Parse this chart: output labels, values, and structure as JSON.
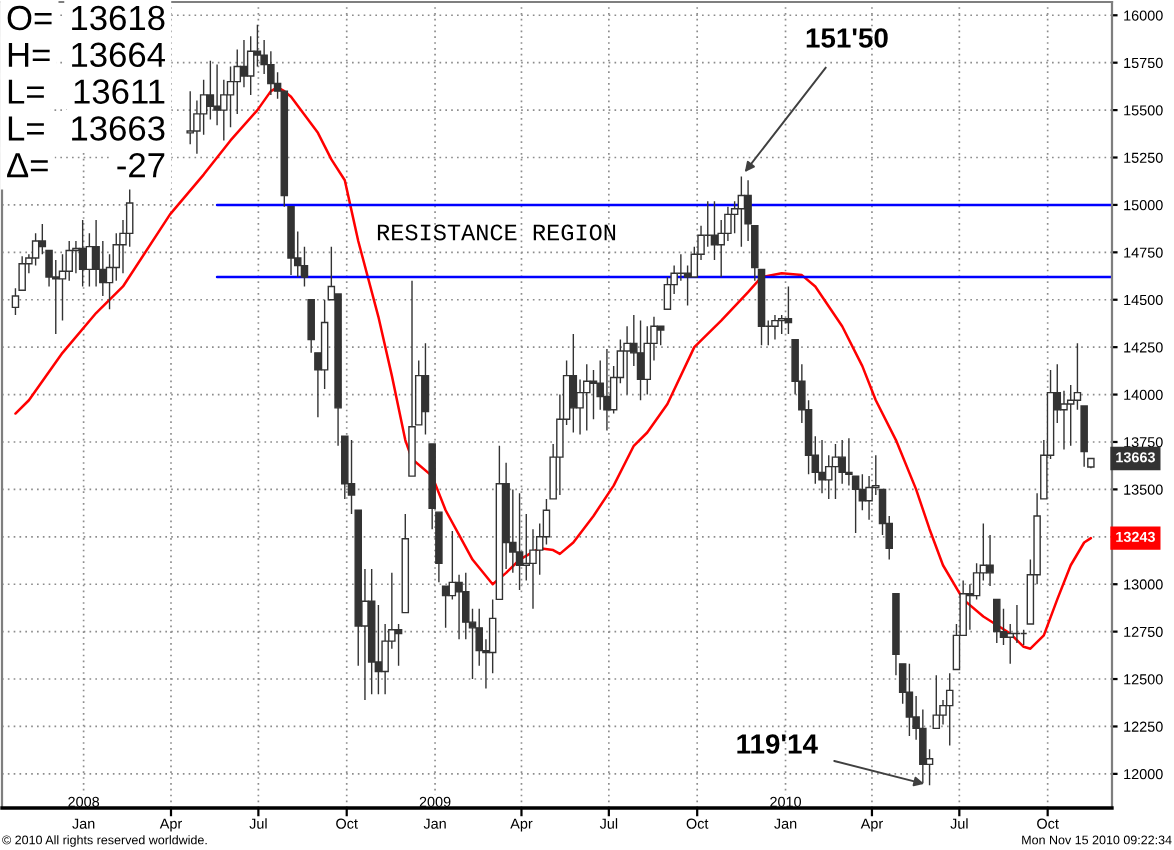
{
  "chart_data": {
    "type": "candlestick",
    "series": [
      {
        "color": "#333333",
        "x": [
          "2007-10-22",
          "2007-10-29",
          "2007-11-05",
          "2007-11-12",
          "2007-11-19",
          "2007-11-26",
          "2007-12-03",
          "2007-12-10",
          "2007-12-17",
          "2007-12-24",
          "2007-12-31",
          "2008-01-07",
          "2008-01-14",
          "2008-01-21",
          "2008-01-28",
          "2008-02-04",
          "2008-02-11",
          "2008-02-18",
          "2008-04-21",
          "2008-04-28",
          "2008-05-05",
          "2008-05-12",
          "2008-05-19",
          "2008-05-26",
          "2008-06-02",
          "2008-06-09",
          "2008-06-16",
          "2008-06-23",
          "2008-06-30",
          "2008-07-07",
          "2008-07-14",
          "2008-07-21",
          "2008-07-28",
          "2008-08-04",
          "2008-08-11",
          "2008-08-18",
          "2008-08-25",
          "2008-09-01",
          "2008-09-08",
          "2008-09-15",
          "2008-09-22",
          "2008-09-29",
          "2008-10-06",
          "2008-10-13",
          "2008-10-20",
          "2008-10-27",
          "2008-11-03",
          "2008-11-10",
          "2008-11-17",
          "2008-11-24",
          "2008-12-01",
          "2008-12-08",
          "2008-12-15",
          "2008-12-22",
          "2008-12-29",
          "2009-01-05",
          "2009-01-12",
          "2009-01-19",
          "2009-01-26",
          "2009-02-02",
          "2009-02-09",
          "2009-02-16",
          "2009-02-23",
          "2009-03-02",
          "2009-03-09",
          "2009-03-16",
          "2009-03-23",
          "2009-03-30",
          "2009-04-06",
          "2009-04-13",
          "2009-04-20",
          "2009-04-27",
          "2009-05-04",
          "2009-05-11",
          "2009-05-18",
          "2009-05-25",
          "2009-06-01",
          "2009-06-08",
          "2009-06-15",
          "2009-06-22",
          "2009-06-29",
          "2009-07-06",
          "2009-07-13",
          "2009-07-20",
          "2009-07-27",
          "2009-08-03",
          "2009-08-10",
          "2009-08-17",
          "2009-08-24",
          "2009-08-31",
          "2009-09-07",
          "2009-09-14",
          "2009-09-21",
          "2009-09-28",
          "2009-10-05",
          "2009-10-12",
          "2009-10-19",
          "2009-10-26",
          "2009-11-02",
          "2009-11-09",
          "2009-11-16",
          "2009-11-23",
          "2009-11-30",
          "2009-12-07",
          "2009-12-14",
          "2009-12-21",
          "2009-12-28",
          "2010-01-04",
          "2010-01-11",
          "2010-01-18",
          "2010-01-25",
          "2010-02-01",
          "2010-02-08",
          "2010-02-15",
          "2010-02-22",
          "2010-03-01",
          "2010-03-08",
          "2010-03-15",
          "2010-03-22",
          "2010-03-29",
          "2010-04-05",
          "2010-04-12",
          "2010-04-19",
          "2010-04-26",
          "2010-05-03",
          "2010-05-10",
          "2010-05-17",
          "2010-05-24",
          "2010-05-31",
          "2010-06-07",
          "2010-06-14",
          "2010-06-21",
          "2010-06-28",
          "2010-07-05",
          "2010-07-12",
          "2010-07-19",
          "2010-07-26",
          "2010-08-02",
          "2010-08-09",
          "2010-08-16",
          "2010-08-23",
          "2010-08-30",
          "2010-09-06",
          "2010-09-13",
          "2010-09-20",
          "2010-09-27",
          "2010-10-04",
          "2010-10-11",
          "2010-10-18",
          "2010-10-25",
          "2010-11-01",
          "2010-11-08",
          "2010-11-15"
        ],
        "ohlc": [
          [
            14460,
            14560,
            14420,
            14520
          ],
          [
            14550,
            14730,
            14550,
            14690
          ],
          [
            14690,
            14740,
            14640,
            14720
          ],
          [
            14720,
            14850,
            14680,
            14810
          ],
          [
            14810,
            14900,
            14740,
            14780
          ],
          [
            14760,
            14760,
            14570,
            14620
          ],
          [
            14620,
            14710,
            14320,
            14610
          ],
          [
            14610,
            14740,
            14390,
            14650
          ],
          [
            14650,
            14810,
            14600,
            14760
          ],
          [
            14760,
            14810,
            14640,
            14770
          ],
          [
            14770,
            14920,
            14570,
            14660
          ],
          [
            14660,
            14850,
            14570,
            14780
          ],
          [
            14780,
            14920,
            14570,
            14660
          ],
          [
            14660,
            14810,
            14520,
            14590
          ],
          [
            14590,
            14740,
            14450,
            14670
          ],
          [
            14670,
            14850,
            14600,
            14790
          ],
          [
            14790,
            14920,
            14640,
            14850
          ],
          [
            14850,
            15090,
            14780,
            15010
          ],
          [
            15380,
            15600,
            15320,
            15390
          ],
          [
            15390,
            15550,
            15270,
            15480
          ],
          [
            15480,
            15660,
            15370,
            15580
          ],
          [
            15580,
            15760,
            15450,
            15520
          ],
          [
            15520,
            15740,
            15420,
            15500
          ],
          [
            15500,
            15660,
            15340,
            15580
          ],
          [
            15580,
            15730,
            15410,
            15650
          ],
          [
            15650,
            15820,
            15480,
            15730
          ],
          [
            15730,
            15870,
            15620,
            15680
          ],
          [
            15680,
            15890,
            15580,
            15810
          ],
          [
            15810,
            15950,
            15730,
            15790
          ],
          [
            15790,
            15870,
            15690,
            15740
          ],
          [
            15740,
            15810,
            15580,
            15640
          ],
          [
            15640,
            15700,
            15560,
            15600
          ],
          [
            15600,
            15600,
            14990,
            15050
          ],
          [
            14990,
            14990,
            14630,
            14720
          ],
          [
            14720,
            14860,
            14620,
            14680
          ],
          [
            14680,
            14780,
            14570,
            14620
          ],
          [
            14500,
            14500,
            14220,
            14290
          ],
          [
            14220,
            14220,
            13880,
            14130
          ],
          [
            14130,
            14500,
            14030,
            14380
          ],
          [
            14500,
            14780,
            14500,
            14570
          ],
          [
            14530,
            14530,
            13730,
            13930
          ],
          [
            13780,
            13780,
            13450,
            13530
          ],
          [
            13530,
            13760,
            13370,
            13470
          ],
          [
            13390,
            13390,
            12570,
            12780
          ],
          [
            12780,
            13080,
            12390,
            12910
          ],
          [
            12910,
            13080,
            12420,
            12590
          ],
          [
            12590,
            12890,
            12420,
            12540
          ],
          [
            12540,
            12790,
            12420,
            12700
          ],
          [
            12700,
            13060,
            12660,
            12760
          ],
          [
            12760,
            12790,
            12570,
            12740
          ],
          [
            12850,
            13370,
            12850,
            13240
          ],
          [
            13570,
            14600,
            13570,
            13830
          ],
          [
            13840,
            14180,
            13840,
            14100
          ],
          [
            14100,
            14270,
            13790,
            13910
          ],
          [
            13740,
            13740,
            13290,
            13400
          ],
          [
            13380,
            13380,
            13010,
            13110
          ],
          [
            12990,
            12990,
            12770,
            12940
          ],
          [
            12940,
            13280,
            12920,
            13010
          ],
          [
            13010,
            13050,
            12710,
            12960
          ],
          [
            12960,
            13060,
            12710,
            12800
          ],
          [
            12800,
            12870,
            12500,
            12770
          ],
          [
            12770,
            12870,
            12570,
            12650
          ],
          [
            12650,
            12710,
            12450,
            12640
          ],
          [
            12640,
            12920,
            12530,
            12820
          ],
          [
            12920,
            13730,
            12920,
            13530
          ],
          [
            13530,
            13640,
            13080,
            13220
          ],
          [
            13220,
            13500,
            13060,
            13170
          ],
          [
            13170,
            13480,
            12970,
            13100
          ],
          [
            13100,
            13370,
            13020,
            13110
          ],
          [
            13110,
            13290,
            12870,
            13180
          ],
          [
            13180,
            13320,
            13050,
            13250
          ],
          [
            13250,
            13450,
            13210,
            13390
          ],
          [
            13450,
            13740,
            13450,
            13670
          ],
          [
            13670,
            14000,
            13470,
            13870
          ],
          [
            13870,
            14180,
            13840,
            14100
          ],
          [
            14100,
            14320,
            13800,
            13930
          ],
          [
            13930,
            14080,
            13790,
            14010
          ],
          [
            14010,
            14160,
            13810,
            14070
          ],
          [
            14070,
            14130,
            13870,
            14060
          ],
          [
            14060,
            14180,
            13920,
            13990
          ],
          [
            13990,
            14240,
            13810,
            13920
          ],
          [
            13920,
            14150,
            13900,
            14090
          ],
          [
            14090,
            14290,
            14060,
            14230
          ],
          [
            14230,
            14360,
            14000,
            14270
          ],
          [
            14270,
            14420,
            14150,
            14220
          ],
          [
            14220,
            14390,
            13970,
            14080
          ],
          [
            14080,
            14360,
            14000,
            14270
          ],
          [
            14270,
            14410,
            14180,
            14360
          ],
          [
            14360,
            14360,
            14260,
            14340
          ],
          [
            14450,
            14620,
            14450,
            14580
          ],
          [
            14580,
            14680,
            14530,
            14640
          ],
          [
            14640,
            14740,
            14600,
            14640
          ],
          [
            14640,
            14680,
            14470,
            14620
          ],
          [
            14620,
            14780,
            14620,
            14740
          ],
          [
            14740,
            14890,
            14710,
            14840
          ],
          [
            14840,
            15020,
            14780,
            14840
          ],
          [
            14840,
            15020,
            14710,
            14790
          ],
          [
            14790,
            14920,
            14620,
            14850
          ],
          [
            14850,
            14990,
            14810,
            14950
          ],
          [
            14950,
            15020,
            14850,
            14980
          ],
          [
            14980,
            15150,
            14780,
            15050
          ],
          [
            15050,
            15130,
            14810,
            14900
          ],
          [
            14890,
            14890,
            14600,
            14670
          ],
          [
            14660,
            14660,
            14260,
            14360
          ],
          [
            14360,
            14390,
            14260,
            14360
          ],
          [
            14360,
            14420,
            14290,
            14390
          ],
          [
            14390,
            14420,
            14320,
            14400
          ],
          [
            14400,
            14570,
            14320,
            14380
          ],
          [
            14290,
            14290,
            14000,
            14070
          ],
          [
            14070,
            14160,
            13850,
            13920
          ],
          [
            13920,
            13970,
            13580,
            13680
          ],
          [
            13680,
            13780,
            13530,
            13590
          ],
          [
            13590,
            13760,
            13480,
            13550
          ],
          [
            13550,
            13680,
            13450,
            13620
          ],
          [
            13620,
            13740,
            13450,
            13670
          ],
          [
            13670,
            13760,
            13530,
            13590
          ],
          [
            13590,
            13770,
            13520,
            13580
          ],
          [
            13570,
            13570,
            13270,
            13500
          ],
          [
            13500,
            13580,
            13390,
            13440
          ],
          [
            13440,
            13570,
            13340,
            13510
          ],
          [
            13510,
            13680,
            13470,
            13520
          ],
          [
            13500,
            13500,
            13260,
            13320
          ],
          [
            13320,
            13360,
            13130,
            13190
          ],
          [
            12950,
            12950,
            12520,
            12630
          ],
          [
            12580,
            12580,
            12370,
            12430
          ],
          [
            12430,
            12580,
            12200,
            12300
          ],
          [
            12300,
            12410,
            12180,
            12240
          ],
          [
            12240,
            12340,
            11950,
            12050
          ],
          [
            12050,
            12130,
            11940,
            12080
          ],
          [
            12240,
            12520,
            12240,
            12310
          ],
          [
            12310,
            12390,
            12260,
            12360
          ],
          [
            12360,
            12530,
            12150,
            12440
          ],
          [
            12550,
            12790,
            12550,
            12730
          ],
          [
            12730,
            13020,
            12730,
            12950
          ],
          [
            12950,
            13000,
            12760,
            12940
          ],
          [
            12940,
            13110,
            12920,
            13060
          ],
          [
            13060,
            13320,
            13020,
            13100
          ],
          [
            13100,
            13260,
            12990,
            13060
          ],
          [
            12920,
            12920,
            12690,
            12750
          ],
          [
            12750,
            12870,
            12680,
            12720
          ],
          [
            12720,
            12790,
            12580,
            12740
          ],
          [
            12740,
            12890,
            12690,
            12740
          ],
          [
            12740,
            12760,
            12680,
            12740
          ],
          [
            12790,
            13130,
            12790,
            13050
          ],
          [
            13050,
            13480,
            13000,
            13360
          ],
          [
            13450,
            13760,
            13450,
            13680
          ],
          [
            13680,
            14130,
            13660,
            14010
          ],
          [
            14010,
            14160,
            13850,
            13920
          ],
          [
            13920,
            14020,
            13710,
            13950
          ],
          [
            13950,
            14050,
            13730,
            13970
          ],
          [
            13970,
            14270,
            13920,
            14010
          ],
          [
            13940,
            13940,
            13620,
            13700
          ],
          [
            13618,
            13664,
            13611,
            13663
          ]
        ],
        "value_labels": [
          null,
          null,
          null,
          null,
          null,
          null,
          null,
          null,
          null,
          null,
          null,
          null,
          null,
          null,
          null,
          null,
          null,
          null,
          null,
          null,
          null,
          null,
          null,
          null,
          null,
          null,
          null,
          null,
          null,
          null,
          null,
          null,
          null,
          null,
          null,
          null,
          null,
          null,
          null,
          null,
          null,
          null,
          null,
          null,
          null,
          null,
          null,
          null,
          null,
          null,
          null,
          null,
          null,
          null,
          null,
          null,
          null,
          null,
          null,
          null,
          null,
          null,
          null,
          null,
          null,
          null,
          null,
          null,
          null,
          null,
          null,
          null,
          null,
          null,
          null,
          null,
          null,
          null,
          null,
          null,
          null,
          null,
          null,
          null,
          null,
          null,
          null,
          null,
          null,
          null,
          null,
          null,
          null,
          null,
          null,
          null,
          null,
          null,
          null,
          null,
          null,
          null,
          null,
          null,
          null,
          null,
          null,
          null,
          null,
          null,
          null,
          null,
          null,
          null,
          null,
          null,
          null,
          null,
          null,
          null,
          null,
          null,
          null,
          null,
          null,
          null,
          null,
          null,
          null,
          null,
          null,
          null,
          null,
          null,
          null,
          null,
          null,
          null,
          null,
          null,
          null,
          null,
          null,
          null,
          null,
          null,
          null,
          null,
          null,
          null,
          null,
          null,
          "13663"
        ]
      },
      {
        "type": "line",
        "color": "#ff0000",
        "x": [
          "2007-10-22",
          "2007-11-05",
          "2007-12-10",
          "2008-01-14",
          "2008-02-11",
          "2008-03-31",
          "2008-05-05",
          "2008-06-02",
          "2008-06-30",
          "2008-07-14",
          "2008-07-21",
          "2008-07-28",
          "2008-08-04",
          "2008-09-01",
          "2008-09-15",
          "2008-09-29",
          "2008-10-06",
          "2008-10-13",
          "2008-11-03",
          "2008-11-17",
          "2008-12-01",
          "2008-12-08",
          "2008-12-29",
          "2009-01-12",
          "2009-01-26",
          "2009-02-09",
          "2009-03-02",
          "2009-03-16",
          "2009-03-30",
          "2009-04-20",
          "2009-05-04",
          "2009-05-11",
          "2009-05-25",
          "2009-06-15",
          "2009-07-06",
          "2009-07-27",
          "2009-08-10",
          "2009-08-31",
          "2009-09-28",
          "2009-10-26",
          "2009-11-23",
          "2009-12-07",
          "2009-12-28",
          "2010-01-18",
          "2010-02-01",
          "2010-03-01",
          "2010-03-22",
          "2010-04-05",
          "2010-04-26",
          "2010-05-17",
          "2010-05-31",
          "2010-06-14",
          "2010-07-05",
          "2010-07-26",
          "2010-08-23",
          "2010-09-06",
          "2010-09-13",
          "2010-09-27",
          "2010-10-11",
          "2010-10-25",
          "2010-11-08",
          "2010-11-15"
        ],
        "values": [
          13900,
          13970,
          14220,
          14430,
          14570,
          14950,
          15160,
          15340,
          15500,
          15600,
          15620,
          15600,
          15570,
          15380,
          15240,
          15130,
          14970,
          14810,
          14410,
          14100,
          13760,
          13660,
          13570,
          13390,
          13260,
          13130,
          13000,
          13060,
          13130,
          13190,
          13180,
          13160,
          13220,
          13360,
          13520,
          13730,
          13800,
          13950,
          14250,
          14390,
          14540,
          14620,
          14640,
          14630,
          14570,
          14360,
          14150,
          13970,
          13760,
          13500,
          13290,
          13100,
          12920,
          12830,
          12740,
          12670,
          12660,
          12730,
          12920,
          13100,
          13220,
          13243
        ],
        "value_labels": [
          null,
          null,
          null,
          null,
          null,
          null,
          null,
          null,
          null,
          null,
          null,
          null,
          null,
          null,
          null,
          null,
          null,
          null,
          null,
          null,
          null,
          null,
          null,
          null,
          null,
          null,
          null,
          null,
          null,
          null,
          null,
          null,
          null,
          null,
          null,
          null,
          null,
          null,
          null,
          null,
          null,
          null,
          null,
          null,
          null,
          null,
          null,
          null,
          null,
          null,
          null,
          null,
          null,
          null,
          null,
          null,
          null,
          null,
          null,
          null,
          null,
          "13243"
        ]
      },
      {
        "type": "line",
        "color": "#0000ff",
        "x": [
          "2008-05-19",
          "2010-12-07"
        ],
        "values": [
          15000,
          15000
        ]
      },
      {
        "type": "line",
        "color": "#0000ff",
        "x": [
          "2008-05-19",
          "2010-12-07"
        ],
        "values": [
          14620,
          14620
        ]
      }
    ],
    "xlim": [
      "2007-10-08",
      "2010-12-07"
    ],
    "xticks": [
      {
        "value": "2008-01-01",
        "label": "2008\nJan"
      },
      {
        "value": "2008-04-01",
        "label": "Apr"
      },
      {
        "value": "2008-07-01",
        "label": "Jul"
      },
      {
        "value": "2008-10-01",
        "label": "Oct"
      },
      {
        "value": "2009-01-01",
        "label": "2009\nJan"
      },
      {
        "value": "2009-04-01",
        "label": "Apr"
      },
      {
        "value": "2009-07-01",
        "label": "Jul"
      },
      {
        "value": "2009-10-01",
        "label": "Oct"
      },
      {
        "value": "2010-01-01",
        "label": "2010\nJan"
      },
      {
        "value": "2010-04-01",
        "label": "Apr"
      },
      {
        "value": "2010-07-01",
        "label": "Jul"
      },
      {
        "value": "2010-10-01",
        "label": "Oct"
      }
    ],
    "ylim": [
      11820,
      16070
    ],
    "yticks": [
      12000,
      12250,
      12500,
      12750,
      13000,
      {
        "value": 13250,
        "label": null
      },
      13500,
      13750,
      14000,
      14250,
      14500,
      14750,
      15000,
      15250,
      15500,
      15750,
      16000
    ],
    "grid": true,
    "annotations": [
      "O= 13618",
      "H= 13664",
      "L= 13611",
      "L= 13663",
      "Δ= -27",
      "RESISTANCE REGION",
      {
        "text": "151'50",
        "x": "2009-11-16",
        "y": 15150
      },
      {
        "text": "119'14",
        "x": "2010-05-31",
        "y": 11940
      },
      "© 2010 All rights reserved worldwide.",
      "Mon Nov 15 2010 09:22:34"
    ]
  }
}
